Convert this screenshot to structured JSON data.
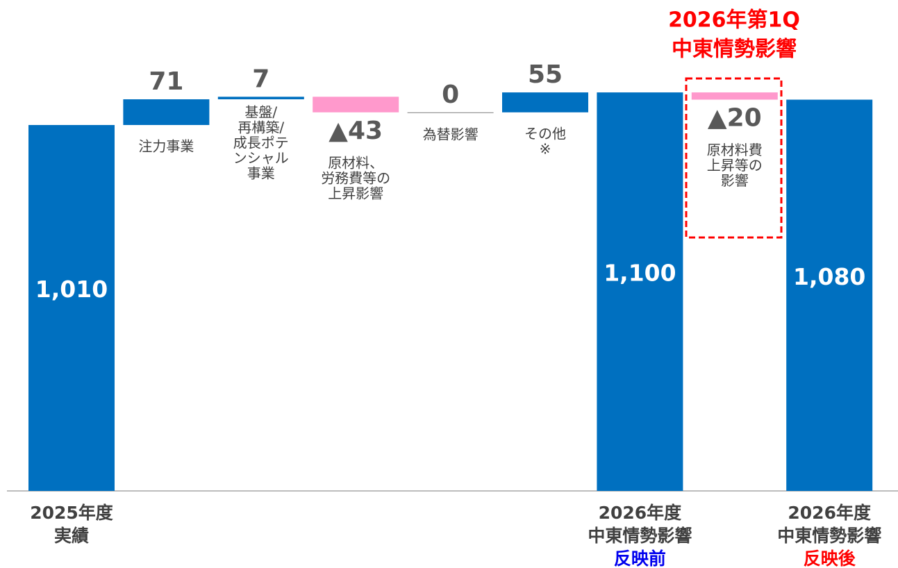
{
  "chart_data": {
    "type": "waterfall",
    "categories": [
      [
        "2025年度",
        "実績"
      ],
      [
        "注力事業"
      ],
      [
        "基盤/",
        "再構築/",
        "成長ポテ",
        "ンシャル",
        "事業"
      ],
      [
        "原材料、",
        "労務費等の",
        "上昇影響"
      ],
      [
        "為替影響"
      ],
      [
        "その他",
        "※"
      ],
      [
        "2026年度",
        "中東情勢影響",
        "反映前"
      ],
      [
        "原材料費",
        "上昇等の",
        "影響"
      ],
      [
        "2026年度",
        "中東情勢影響",
        "反映後"
      ]
    ],
    "values": [
      1010,
      71,
      7,
      -43,
      0,
      55,
      1100,
      -20,
      1080
    ],
    "value_labels": [
      "1,010",
      "71",
      "7",
      "▲43",
      "0",
      "55",
      "1,100",
      "▲20",
      "1,080"
    ],
    "is_total": [
      true,
      false,
      false,
      false,
      false,
      false,
      true,
      false,
      true
    ],
    "colors": [
      "#0070c0",
      "#0070c0",
      "#0070c0",
      "#ff99cc",
      "#7f7f7f",
      "#0070c0",
      "#0070c0",
      "#ff99cc",
      "#0070c0"
    ],
    "label_highlight": {
      "6": "#0000ee",
      "8": "#ff0000"
    },
    "annotation": [
      "2026年第1Q",
      "中東情勢影響"
    ],
    "annotation_color": "#ff0000",
    "ylim": [
      0,
      1150
    ]
  }
}
